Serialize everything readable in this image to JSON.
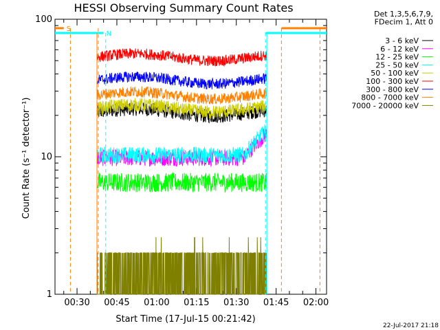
{
  "chart_data": {
    "type": "line",
    "title": "HESSI Observing Summary Count Rates",
    "xlabel": "Start Time (17-Jul-15 00:21:42)",
    "ylabel": "Count Rate (s⁻¹ detector⁻¹)",
    "yscale": "log",
    "ylim": [
      1,
      100
    ],
    "xlim_minutes": [
      21.7,
      124.0
    ],
    "ytick_labels": [
      {
        "value": 1,
        "label": "1"
      },
      {
        "value": 10,
        "label": "10"
      },
      {
        "value": 100,
        "label": "100"
      }
    ],
    "xtick_labels": [
      {
        "value": 30,
        "label": "00:30"
      },
      {
        "value": 45,
        "label": "00:45"
      },
      {
        "value": 60,
        "label": "01:00"
      },
      {
        "value": 75,
        "label": "01:15"
      },
      {
        "value": 90,
        "label": "01:30"
      },
      {
        "value": 105,
        "label": "01:45"
      },
      {
        "value": 120,
        "label": "02:00"
      }
    ],
    "legend_header": [
      "Det 1,3,5,6,7,9,",
      "FDecim 1, Att 0"
    ],
    "legend_position": "right",
    "data_start": 37.5,
    "data_end": 101.5,
    "series": [
      {
        "name": "3 - 6 keV",
        "color": "#000000",
        "level": 21,
        "noise": 0.05
      },
      {
        "name": "6 - 12 keV",
        "color": "#ff00ff",
        "level": 9.8,
        "noise": 0.06
      },
      {
        "name": "12 - 25 keV",
        "color": "#00ff00",
        "level": 6.5,
        "noise": 0.07
      },
      {
        "name": "25 - 50 keV",
        "color": "#00ffff",
        "level": 10.3,
        "noise": 0.06
      },
      {
        "name": "50 - 100 keV",
        "color": "#cccc00",
        "level": 22.5,
        "noise": 0.05
      },
      {
        "name": "100 - 300 keV",
        "color": "#ff0000",
        "level": 53,
        "noise": 0.04
      },
      {
        "name": "300 - 800 keV",
        "color": "#0000ff",
        "level": 36,
        "noise": 0.04
      },
      {
        "name": "800 - 7000 keV",
        "color": "#ff8000",
        "level": 28,
        "noise": 0.04
      },
      {
        "name": "7000 - 20000 keV",
        "color": "#808000",
        "level": 1.5,
        "noise": 0.0
      }
    ],
    "flags": [
      {
        "label": "S",
        "color": "#ff8000",
        "start": 21.7,
        "end": 25.0,
        "dash_x": [
          27.5,
          38.0
        ]
      },
      {
        "label": "N",
        "color": "#00ffff",
        "start": 21.7,
        "end": 40.0,
        "dash_x": [
          40.8
        ]
      },
      {
        "label": "",
        "color": "#00ffff",
        "start": 101.0,
        "end": 124.0,
        "dash_x": [
          101.0
        ]
      },
      {
        "label": "",
        "color": "#ff8000",
        "start": 107.0,
        "end": 124.0,
        "dash_x": [
          107.0,
          121.5
        ]
      }
    ],
    "footer_date": "22-Jul-2017 21:18"
  }
}
